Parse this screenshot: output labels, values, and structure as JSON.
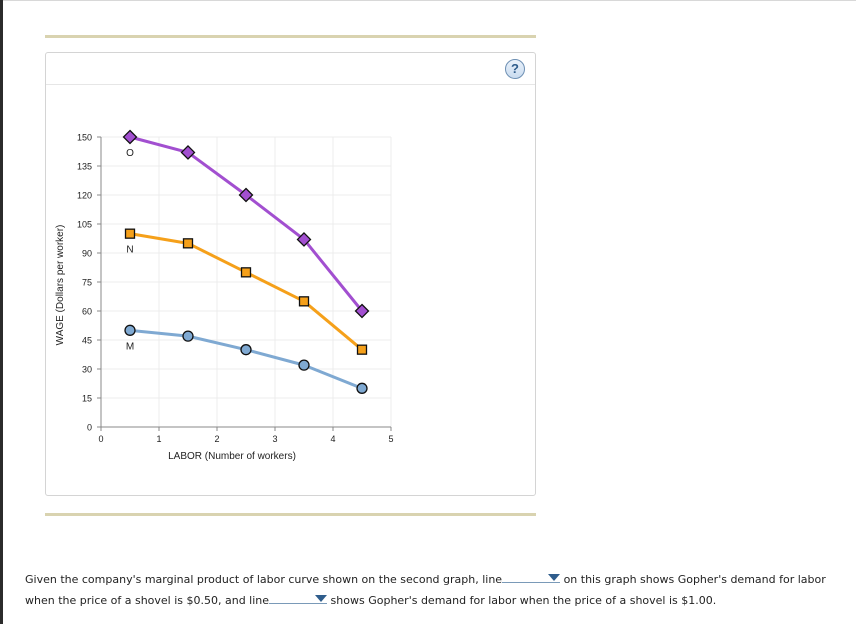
{
  "chart_data": {
    "type": "line",
    "xlabel": "LABOR (Number of workers)",
    "ylabel": "WAGE (Dollars per worker)",
    "xlim": [
      0,
      5
    ],
    "ylim": [
      0,
      150
    ],
    "x_ticks": [
      "0",
      "1",
      "2",
      "3",
      "4",
      "5"
    ],
    "y_ticks": [
      "0",
      "15",
      "30",
      "45",
      "60",
      "75",
      "90",
      "105",
      "120",
      "135",
      "150"
    ],
    "grid": true,
    "series": [
      {
        "name": "O",
        "color": "#a24fd0",
        "marker": "diamond",
        "x": [
          0.5,
          1.5,
          2.5,
          3.5,
          4.5
        ],
        "y": [
          150,
          142,
          120,
          97,
          60
        ]
      },
      {
        "name": "N",
        "color": "#f5a01a",
        "marker": "square",
        "x": [
          0.5,
          1.5,
          2.5,
          3.5,
          4.5
        ],
        "y": [
          100,
          95,
          80,
          65,
          40
        ]
      },
      {
        "name": "M",
        "color": "#7fa9d2",
        "marker": "circle",
        "x": [
          0.5,
          1.5,
          2.5,
          3.5,
          4.5
        ],
        "y": [
          50,
          47,
          40,
          32,
          20
        ]
      }
    ]
  },
  "help_label": "?",
  "question": {
    "part1": "Given the company's marginal product of labor curve shown on the second graph, line",
    "part2": "on this graph shows Gopher's demand for labor",
    "part3": "when the price of a shovel is $0.50, and line",
    "part4": "shows Gopher's demand for labor when the price of a shovel is $1.00."
  }
}
